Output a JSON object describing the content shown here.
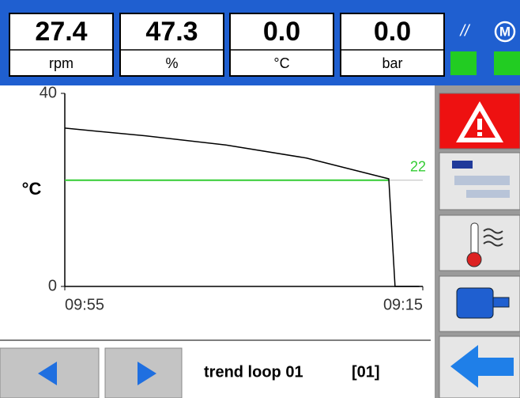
{
  "status_bar": {
    "readouts": [
      {
        "value": "27.4",
        "unit": "rpm"
      },
      {
        "value": "47.3",
        "unit": "%"
      },
      {
        "value": "0.0",
        "unit": "°C"
      },
      {
        "value": "0.0",
        "unit": "bar"
      }
    ],
    "indicators": [
      "//",
      "M"
    ]
  },
  "chart_data": {
    "type": "line",
    "ylabel": "°C",
    "x": [
      0,
      9,
      18,
      27,
      36.2,
      36.9,
      39.6
    ],
    "series": [
      {
        "color": "#000000",
        "values": [
          32.8,
          31.2,
          29.3,
          26.6,
          22.3,
          0,
          0
        ]
      }
    ],
    "xlim": [
      0,
      40
    ],
    "xticks": [
      {
        "value": 0,
        "label": "09:55"
      },
      {
        "value": 40,
        "label": "09:15"
      }
    ],
    "ylim": [
      0,
      40
    ],
    "yticks": [
      0,
      40
    ],
    "hline": {
      "value": 22,
      "color": "#33cc33"
    }
  },
  "footer": {
    "title": "trend loop 01",
    "index": "[01]"
  }
}
